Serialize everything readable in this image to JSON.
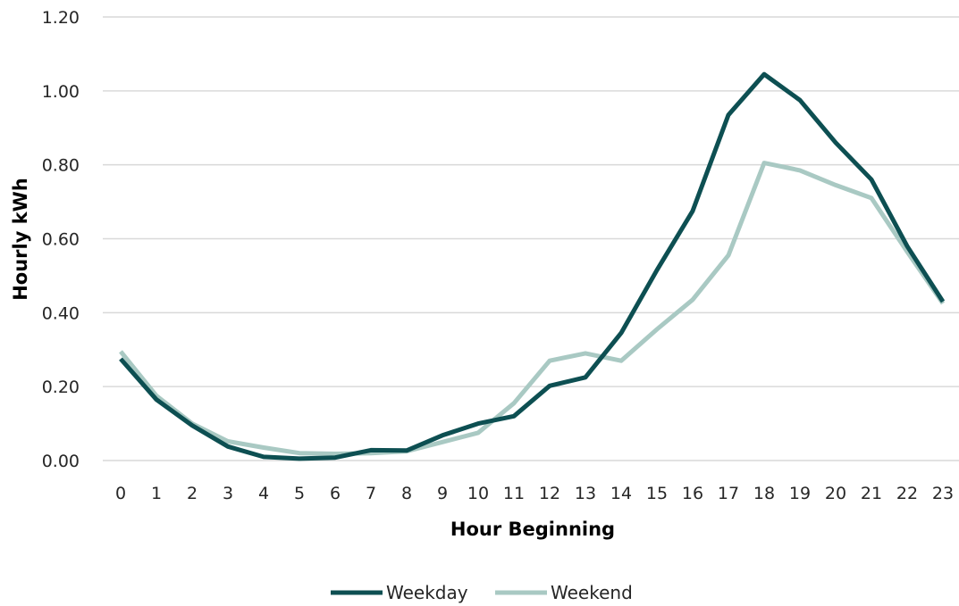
{
  "chart_data": {
    "type": "line",
    "title": "",
    "xlabel": "Hour Beginning",
    "ylabel": "Hourly kWh",
    "x": [
      0,
      1,
      2,
      3,
      4,
      5,
      6,
      7,
      8,
      9,
      10,
      11,
      12,
      13,
      14,
      15,
      16,
      17,
      18,
      19,
      20,
      21,
      22,
      23
    ],
    "yticks": [
      "0.00",
      "0.20",
      "0.40",
      "0.60",
      "0.80",
      "1.00",
      "1.20"
    ],
    "ylim": [
      0,
      1.2
    ],
    "grid": true,
    "legend_position": "bottom",
    "series": [
      {
        "name": "Weekday",
        "color": "#0d4f52",
        "values": [
          0.275,
          0.165,
          0.095,
          0.038,
          0.01,
          0.005,
          0.008,
          0.028,
          0.027,
          0.068,
          0.1,
          0.12,
          0.202,
          0.225,
          0.345,
          0.515,
          0.675,
          0.935,
          1.045,
          0.975,
          0.86,
          0.76,
          0.58,
          0.43
        ]
      },
      {
        "name": "Weekend",
        "color": "#a9c9c3",
        "values": [
          0.295,
          0.175,
          0.1,
          0.052,
          0.035,
          0.02,
          0.018,
          0.02,
          0.025,
          0.05,
          0.075,
          0.155,
          0.27,
          0.29,
          0.27,
          0.355,
          0.435,
          0.555,
          0.805,
          0.785,
          0.745,
          0.71,
          0.565,
          0.425
        ]
      }
    ]
  }
}
